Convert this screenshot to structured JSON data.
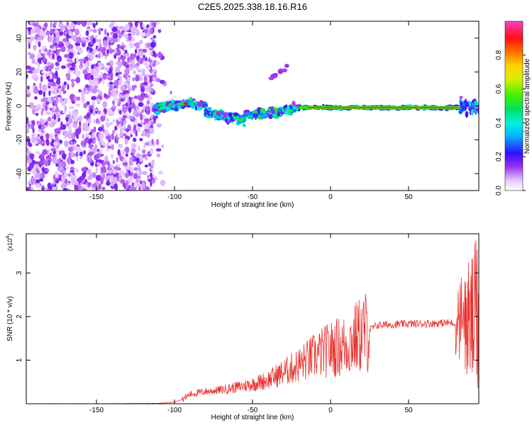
{
  "title": "C2E5.2025.338.18.16.R16",
  "chart_data": [
    {
      "type": "heatmap",
      "title": "C2E5.2025.338.18.16.R16",
      "xlabel": "Height of straight line (km)",
      "ylabel": "Frequency (Hz)",
      "xlim": [
        -195,
        95
      ],
      "ylim": [
        -50,
        50
      ],
      "xticks": [
        -150,
        -100,
        -50,
        0,
        50
      ],
      "yticks": [
        -40,
        -20,
        0,
        20,
        40
      ],
      "xtick_labels": [
        "-150",
        "-100",
        "-50",
        "0",
        "50"
      ],
      "ytick_labels": [
        "-40",
        "-20",
        "0",
        "20",
        "40"
      ],
      "colorbar": {
        "label": "Normalized spectral amplitude",
        "range": [
          0,
          1
        ],
        "ticks": [
          0.0,
          0.2,
          0.4,
          0.6,
          0.8
        ],
        "tick_labels": [
          "0.0",
          "0.2",
          "0.4",
          "0.6",
          "0.8"
        ]
      },
      "regions": [
        {
          "name": "noise",
          "x": [
            -195,
            -112
          ],
          "f": [
            -50,
            50
          ],
          "amplitude": 0.1
        },
        {
          "name": "onset trace",
          "x": [
            -112,
            -20
          ],
          "f": [
            -14,
            6
          ],
          "amplitude": 0.35
        },
        {
          "name": "faint blip",
          "x": [
            -40,
            -28
          ],
          "f": [
            15,
            23
          ],
          "amplitude": 0.12
        },
        {
          "name": "steady line",
          "x": [
            -20,
            83
          ],
          "f": [
            -3,
            1
          ],
          "center_f": -1,
          "amplitude": 0.95
        },
        {
          "name": "end burst",
          "x": [
            83,
            95
          ],
          "f": [
            -8,
            8
          ],
          "amplitude": 0.3
        }
      ]
    },
    {
      "type": "line",
      "xlabel": "Height of straight line (km)",
      "ylabel": "SNR (10 * v/v)",
      "y_multiplier": "(x10",
      "y_multiplier_exp": "4",
      "y_multiplier_close": ")",
      "xlim": [
        -195,
        95
      ],
      "ylim": [
        0,
        3.9
      ],
      "xticks": [
        -150,
        -100,
        -50,
        0,
        50
      ],
      "yticks": [
        1,
        2,
        3
      ],
      "xtick_labels": [
        "-150",
        "-100",
        "-50",
        "0",
        "50"
      ],
      "ytick_labels": [
        "1",
        "2",
        "3"
      ],
      "series": [
        {
          "name": "SNR",
          "color": "#e8302c",
          "x": [
            -195,
            -150,
            -110,
            -100,
            -95,
            -90,
            -80,
            -70,
            -60,
            -50,
            -40,
            -30,
            -20,
            -10,
            0,
            10,
            20,
            30,
            40,
            50,
            60,
            70,
            80,
            85,
            90,
            95
          ],
          "y": [
            0.0,
            0.0,
            0.01,
            0.04,
            0.1,
            0.22,
            0.28,
            0.32,
            0.38,
            0.45,
            0.55,
            0.72,
            0.9,
            1.1,
            1.25,
            1.35,
            1.6,
            1.8,
            1.82,
            1.83,
            1.84,
            1.85,
            1.86,
            1.9,
            1.95,
            2.2
          ]
        }
      ]
    }
  ],
  "colors": {
    "line": "#e8302c",
    "noise": "#8a2be2",
    "hot": "#e8001a"
  }
}
